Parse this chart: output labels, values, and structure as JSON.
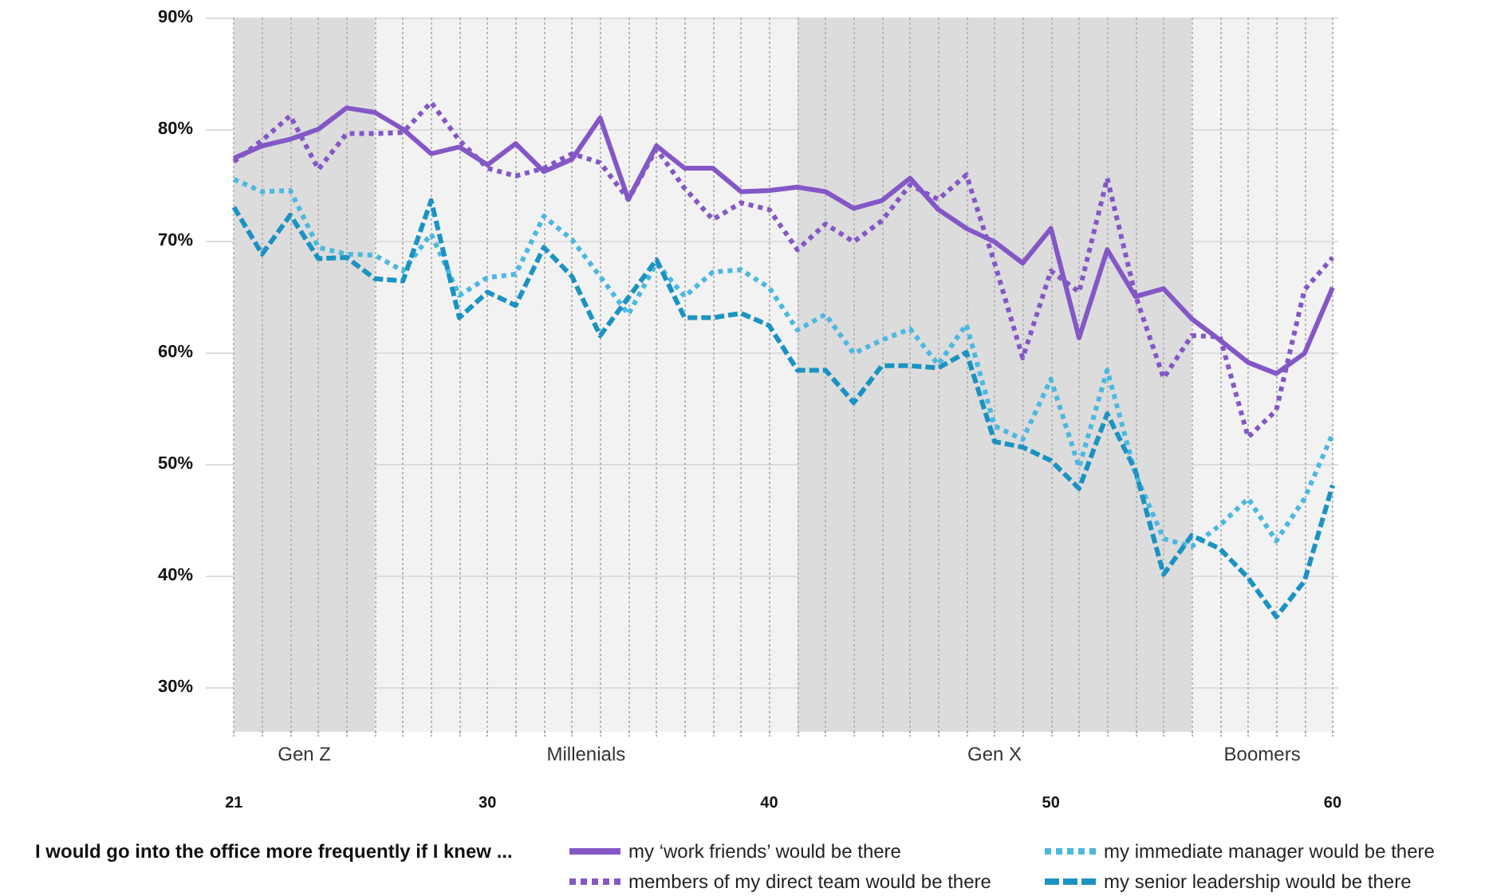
{
  "chart_data": {
    "type": "line",
    "legend_title": "I would go into the office more frequently if I knew ...",
    "x": [
      21,
      22,
      23,
      24,
      25,
      26,
      27,
      28,
      29,
      30,
      31,
      32,
      33,
      34,
      35,
      36,
      37,
      38,
      39,
      40,
      41,
      42,
      43,
      44,
      45,
      46,
      47,
      48,
      49,
      50,
      51,
      52,
      53,
      54,
      55,
      56,
      57,
      58,
      59,
      60
    ],
    "xlim": [
      20,
      60.2
    ],
    "xticks": [
      21,
      {
        "value": 22,
        "label": null
      },
      {
        "value": 23,
        "label": null
      },
      {
        "value": 24,
        "label": null
      },
      {
        "value": 25,
        "label": null
      },
      {
        "value": 26,
        "label": null
      },
      {
        "value": 27,
        "label": null
      },
      {
        "value": 28,
        "label": null
      },
      {
        "value": 29,
        "label": null
      },
      30,
      {
        "value": 31,
        "label": null
      },
      {
        "value": 32,
        "label": null
      },
      {
        "value": 33,
        "label": null
      },
      {
        "value": 34,
        "label": null
      },
      {
        "value": 35,
        "label": null
      },
      {
        "value": 36,
        "label": null
      },
      {
        "value": 37,
        "label": null
      },
      {
        "value": 38,
        "label": null
      },
      {
        "value": 39,
        "label": null
      },
      40,
      {
        "value": 41,
        "label": null
      },
      {
        "value": 42,
        "label": null
      },
      {
        "value": 43,
        "label": null
      },
      {
        "value": 44,
        "label": null
      },
      {
        "value": 45,
        "label": null
      },
      {
        "value": 46,
        "label": null
      },
      {
        "value": 47,
        "label": null
      },
      {
        "value": 48,
        "label": null
      },
      {
        "value": 49,
        "label": null
      },
      50,
      {
        "value": 51,
        "label": null
      },
      {
        "value": 52,
        "label": null
      },
      {
        "value": 53,
        "label": null
      },
      {
        "value": 54,
        "label": null
      },
      {
        "value": 55,
        "label": null
      },
      {
        "value": 56,
        "label": null
      },
      {
        "value": 57,
        "label": null
      },
      {
        "value": 58,
        "label": null
      },
      {
        "value": 59,
        "label": null
      },
      60
    ],
    "ylim": [
      26,
      90
    ],
    "yticks": [
      {
        "value": 30,
        "label": "30%"
      },
      {
        "value": 40,
        "label": "40%"
      },
      {
        "value": 50,
        "label": "50%"
      },
      {
        "value": 60,
        "label": "60%"
      },
      {
        "value": 70,
        "label": "70%"
      },
      {
        "value": 80,
        "label": "80%"
      },
      {
        "value": 90,
        "label": "90%"
      }
    ],
    "grid": true,
    "legend": "bottom right",
    "bands": [
      {
        "axis": "x",
        "from": 21,
        "to": 26,
        "label": "Gen Z",
        "color": "#dcdcdc"
      },
      {
        "axis": "x",
        "from": 26,
        "to": 41,
        "label": "Millenials",
        "color": "#f2f2f2"
      },
      {
        "axis": "x",
        "from": 41,
        "to": 55,
        "label": "Gen X",
        "color": "#dcdcdc"
      },
      {
        "axis": "x",
        "from": 55,
        "to": 60,
        "label": "Boomers",
        "color": "#f2f2f2"
      }
    ],
    "series": [
      {
        "name": "my ‘work friends’ would be there",
        "color": "#8457c6",
        "line_style": "solid",
        "values": [
          77.4,
          78.5,
          79.1,
          80.0,
          81.9,
          81.5,
          80.0,
          77.8,
          78.4,
          76.8,
          78.7,
          76.2,
          77.3,
          81.0,
          73.7,
          78.5,
          76.5,
          76.5,
          74.4,
          74.5,
          74.8,
          74.4,
          72.9,
          73.6,
          75.6,
          72.8,
          71.1,
          69.9,
          68.0,
          71.1,
          61.3,
          69.2,
          65.0,
          65.7,
          63.0,
          61.1,
          59.1,
          58.1,
          59.9,
          65.8
        ]
      },
      {
        "name": "members of my direct team would be there",
        "color": "#8457c6",
        "line_style": "dotted",
        "values": [
          77.1,
          79.0,
          81.2,
          76.4,
          79.6,
          79.6,
          79.7,
          82.4,
          79.0,
          76.5,
          75.8,
          76.5,
          77.8,
          77.0,
          73.7,
          78.2,
          74.7,
          71.9,
          73.4,
          72.8,
          69.2,
          71.5,
          69.9,
          71.8,
          75.0,
          73.7,
          75.9,
          68.0,
          59.5,
          67.3,
          65.4,
          75.6,
          65.1,
          57.7,
          61.5,
          61.4,
          52.4,
          54.8,
          65.6,
          68.5
        ]
      },
      {
        "name": "my immediate manager would be there",
        "color": "#4cb8e0",
        "line_style": "dotted",
        "values": [
          75.5,
          74.4,
          74.5,
          69.4,
          68.8,
          68.7,
          67.3,
          70.6,
          65.1,
          66.7,
          67.0,
          72.2,
          70.1,
          66.8,
          63.4,
          68.0,
          65.0,
          67.2,
          67.4,
          65.8,
          62.0,
          63.4,
          59.9,
          61.1,
          62.1,
          58.9,
          62.5,
          53.4,
          52.2,
          57.6,
          49.7,
          58.4,
          49.1,
          43.3,
          42.6,
          44.5,
          46.9,
          43.1,
          46.9,
          52.7
        ]
      },
      {
        "name": "my senior leadership would be there",
        "color": "#1b93c2",
        "line_style": "dashed",
        "values": [
          73.0,
          68.8,
          72.3,
          68.4,
          68.5,
          66.6,
          66.4,
          73.6,
          63.1,
          65.4,
          64.2,
          69.4,
          66.8,
          61.5,
          64.9,
          68.3,
          63.1,
          63.1,
          63.5,
          62.4,
          58.4,
          58.4,
          55.5,
          58.8,
          58.8,
          58.6,
          60.0,
          52.0,
          51.5,
          50.3,
          47.8,
          54.5,
          49.4,
          40.1,
          43.6,
          42.4,
          39.8,
          36.3,
          39.5,
          48.1
        ]
      }
    ]
  }
}
